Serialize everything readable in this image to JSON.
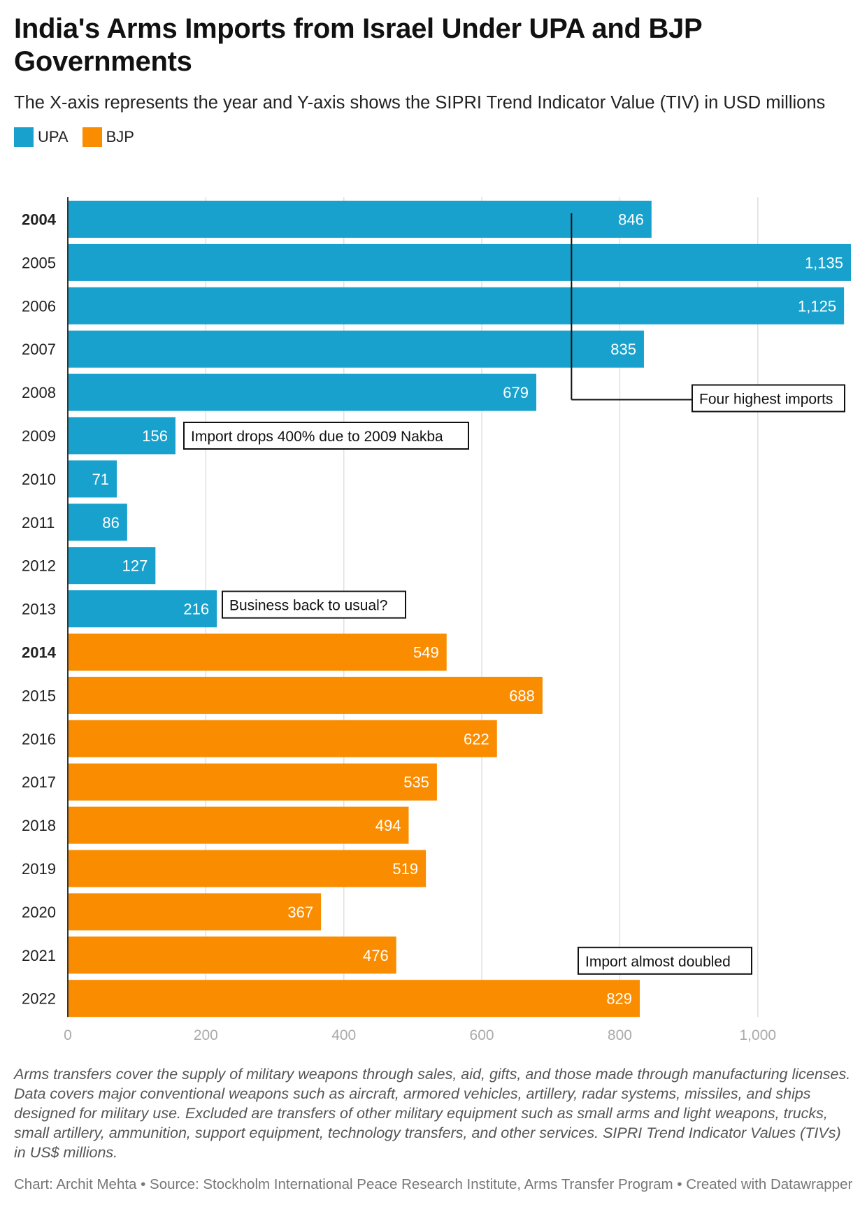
{
  "header": {
    "title": "India's Arms Imports from Israel Under UPA and BJP Governments",
    "subtitle": "The X-axis represents the year and Y-axis shows the SIPRI Trend Indicator Value (TIV) in USD millions"
  },
  "legend": {
    "items": [
      {
        "label": "UPA",
        "color": "#18a1cd"
      },
      {
        "label": "BJP",
        "color": "#fa8c00"
      }
    ]
  },
  "chart_data": {
    "type": "bar",
    "orientation": "horizontal",
    "categories": [
      "2004",
      "2005",
      "2006",
      "2007",
      "2008",
      "2009",
      "2010",
      "2011",
      "2012",
      "2013",
      "2014",
      "2015",
      "2016",
      "2017",
      "2018",
      "2019",
      "2020",
      "2021",
      "2022"
    ],
    "values": [
      846,
      1135,
      1125,
      835,
      679,
      156,
      71,
      86,
      127,
      216,
      549,
      688,
      622,
      535,
      494,
      519,
      367,
      476,
      829
    ],
    "value_labels": [
      "846",
      "1,135",
      "1,125",
      "835",
      "679",
      "156",
      "71",
      "86",
      "127",
      "216",
      "549",
      "688",
      "622",
      "535",
      "494",
      "519",
      "367",
      "476",
      "829"
    ],
    "government": [
      "UPA",
      "UPA",
      "UPA",
      "UPA",
      "UPA",
      "UPA",
      "UPA",
      "UPA",
      "UPA",
      "UPA",
      "BJP",
      "BJP",
      "BJP",
      "BJP",
      "BJP",
      "BJP",
      "BJP",
      "BJP",
      "BJP"
    ],
    "bold_categories": [
      "2004",
      "2014"
    ],
    "xlim": [
      0,
      1135
    ],
    "xticks": [
      0,
      200,
      400,
      600,
      800,
      1000
    ],
    "xtick_labels": [
      "0",
      "200",
      "400",
      "600",
      "800",
      "1,000"
    ],
    "grid": true,
    "legend_position": "top-left",
    "annotations": [
      {
        "text": "Four highest imports",
        "category": "2007",
        "anchor_value": 730
      },
      {
        "text": "Import drops 400% due to 2009 Nakba",
        "category": "2009"
      },
      {
        "text": "Business back to usual?",
        "category": "2013"
      },
      {
        "text": "Import almost doubled",
        "category": "2021"
      }
    ]
  },
  "notes": "Arms transfers cover the supply of military weapons through sales, aid, gifts, and those made through manufacturing licenses. Data covers major conventional weapons such as aircraft, armored vehicles, artillery, radar systems, missiles, and ships designed for military use. Excluded are transfers of other military equipment such as small arms and light weapons, trucks, small artillery, ammunition, support equipment, technology transfers, and other services. SIPRI Trend Indicator Values (TIVs) in US$ millions.",
  "footer": "Chart: Archit Mehta • Source: Stockholm International Peace Research Institute, Arms Transfer Program • Created with Datawrapper"
}
